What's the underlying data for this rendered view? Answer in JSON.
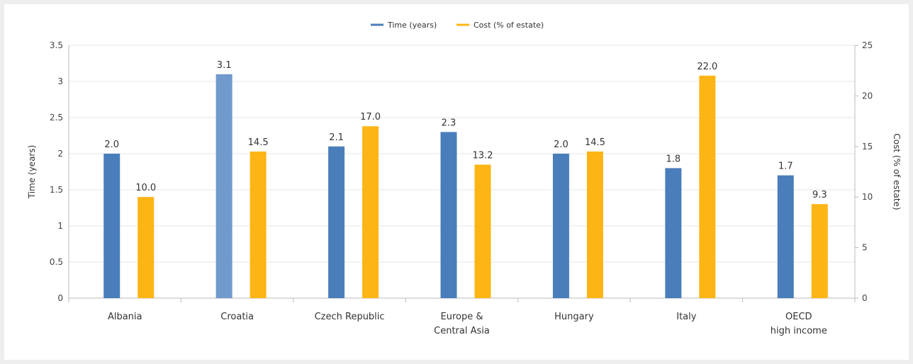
{
  "chart_data": {
    "type": "bar",
    "categories": [
      [
        "Albania"
      ],
      [
        "Croatia"
      ],
      [
        "Czech Republic"
      ],
      [
        "Europe &",
        "Central Asia"
      ],
      [
        "Hungary"
      ],
      [
        "Italy"
      ],
      [
        "OECD",
        "high income"
      ]
    ],
    "series": [
      {
        "name": "Time (years)",
        "axis": "left",
        "color": "#4a7ebb",
        "values": [
          2.0,
          3.1,
          2.1,
          2.3,
          2.0,
          1.8,
          1.7
        ],
        "labels": [
          "2.0",
          "3.1",
          "2.1",
          "2.3",
          "2.0",
          "1.8",
          "1.7"
        ]
      },
      {
        "name": "Cost (% of estate)",
        "axis": "right",
        "color": "#fdb515",
        "values": [
          10.0,
          14.5,
          17.0,
          13.2,
          14.5,
          22.0,
          9.3
        ],
        "labels": [
          "10.0",
          "14.5",
          "17.0",
          "13.2",
          "14.5",
          "22.0",
          "9.3"
        ]
      }
    ],
    "highlight": {
      "series": 0,
      "index": 1,
      "color": "#7099cc"
    },
    "ylabel": "Time (years)",
    "y2label": "Cost (% of estate)",
    "ylim": [
      0,
      3.5
    ],
    "y2lim": [
      0,
      25
    ],
    "yticks": [
      "0",
      "0.5",
      "1",
      "1.5",
      "2",
      "2.5",
      "3",
      "3.5"
    ],
    "y2ticks": [
      "0",
      "5",
      "10",
      "15",
      "20",
      "25"
    ],
    "grid": true,
    "legend_position": "top-center"
  }
}
